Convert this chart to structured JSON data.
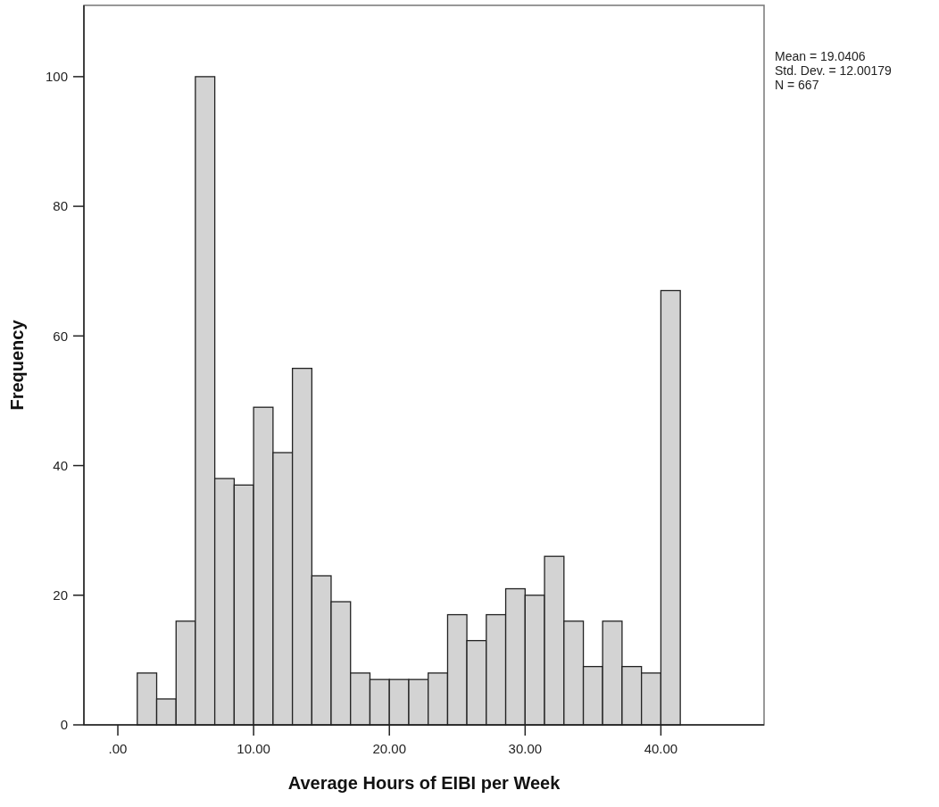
{
  "chart_data": {
    "type": "histogram",
    "xlabel": "Average Hours of EIBI per Week",
    "ylabel": "Frequency",
    "bins": [
      1.43,
      2.86,
      4.29,
      5.71,
      7.14,
      8.57,
      10,
      11.43,
      12.86,
      14.29,
      15.71,
      17.14,
      18.57,
      20,
      21.43,
      22.86,
      24.29,
      25.71,
      27.14,
      28.57,
      30,
      31.43,
      32.86,
      34.29,
      35.71,
      37.14,
      38.57,
      40,
      41.43
    ],
    "values": [
      8,
      4,
      16,
      100,
      38,
      37,
      49,
      42,
      55,
      23,
      19,
      8,
      7,
      7,
      7,
      8,
      17,
      13,
      17,
      21,
      20,
      26,
      16,
      9,
      16,
      9,
      8,
      67
    ],
    "color": "#d3d3d3",
    "xlim": [
      -2.5,
      47.6
    ],
    "xticks": [
      {
        "value": 0,
        "label": ".00"
      },
      {
        "value": 10,
        "label": "10.00"
      },
      {
        "value": 20,
        "label": "20.00"
      },
      {
        "value": 30,
        "label": "30.00"
      },
      {
        "value": 40,
        "label": "40.00"
      }
    ],
    "ylim": [
      0,
      111
    ],
    "yticks": [
      0,
      20,
      40,
      60,
      80,
      100
    ],
    "annotations": [
      "Mean = 19.0406",
      "Std. Dev. = 12.00179",
      "N = 667"
    ],
    "grid": false
  }
}
